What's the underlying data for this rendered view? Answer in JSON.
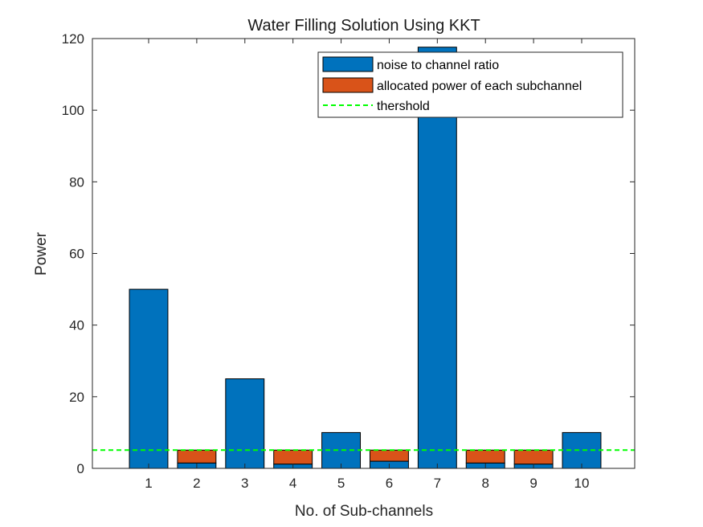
{
  "chart_data": {
    "type": "bar",
    "title": "Water Filling Solution Using KKT",
    "xlabel": "No. of Sub-channels",
    "ylabel": "Power",
    "categories": [
      "1",
      "2",
      "3",
      "4",
      "5",
      "6",
      "7",
      "8",
      "9",
      "10"
    ],
    "series": [
      {
        "name": "noise to channel ratio",
        "color": "#0072BD",
        "values": [
          50,
          1.5,
          25,
          1.2,
          10,
          2,
          117.6,
          1.5,
          1.2,
          10
        ]
      },
      {
        "name": "allocated power of each subchannel",
        "color": "#D95319",
        "values": [
          0,
          3.6,
          0,
          3.9,
          0,
          3.1,
          0,
          3.6,
          3.9,
          0
        ]
      }
    ],
    "threshold": {
      "name": "thershold",
      "value": 5.1,
      "color": "#00FF00",
      "style": "dashed"
    },
    "stacked": true,
    "ylim": [
      0,
      120
    ],
    "yticks": [
      0,
      20,
      40,
      60,
      80,
      100,
      120
    ],
    "grid": false,
    "legend_position": "top-right"
  }
}
